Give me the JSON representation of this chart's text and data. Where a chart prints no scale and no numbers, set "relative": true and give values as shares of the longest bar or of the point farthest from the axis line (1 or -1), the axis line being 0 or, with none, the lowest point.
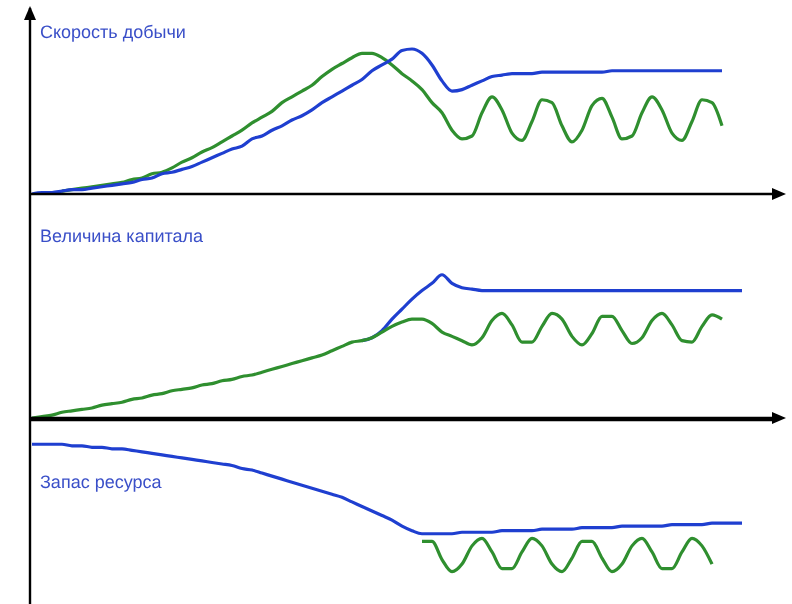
{
  "chart_data": [
    {
      "type": "line",
      "title": "Скорость добычи",
      "relative": true,
      "categories": [
        null,
        null,
        null,
        null,
        null,
        null,
        null,
        null,
        null,
        null,
        null,
        null,
        null,
        null,
        null,
        null,
        null,
        null,
        null,
        null,
        null,
        null,
        null,
        null,
        null,
        null,
        null,
        null,
        null,
        null,
        null,
        null,
        null,
        null,
        null,
        null,
        null,
        null,
        null,
        null,
        null,
        null,
        null,
        null,
        null,
        null,
        null,
        null,
        null,
        null,
        null,
        null,
        null,
        null,
        null,
        null,
        null,
        null,
        null,
        null,
        null,
        null,
        null,
        null,
        null,
        null,
        null,
        null,
        null,
        null,
        null,
        null,
        null
      ],
      "series": [
        {
          "color": "#2f8f2f",
          "values": [
            null,
            null,
            null,
            0.02,
            0.03,
            0.04,
            0.05,
            0.06,
            0.07,
            0.08,
            0.1,
            0.11,
            0.14,
            0.15,
            0.18,
            0.22,
            0.25,
            0.29,
            0.32,
            0.36,
            0.4,
            0.44,
            0.49,
            0.53,
            0.57,
            0.63,
            0.67,
            0.71,
            0.75,
            0.81,
            0.86,
            0.9,
            0.94,
            0.97,
            0.97,
            0.94,
            0.89,
            0.83,
            0.78,
            0.72,
            0.63,
            0.56,
            0.44,
            0.38,
            0.4,
            0.56,
            0.67,
            0.58,
            0.42,
            0.37,
            0.5,
            0.65,
            0.63,
            0.47,
            0.36,
            0.44,
            0.61,
            0.66,
            0.53,
            0.38,
            0.4,
            0.56,
            0.67,
            0.58,
            0.42,
            0.37,
            0.5,
            0.65,
            0.63,
            0.47,
            null,
            null,
            null
          ]
        },
        {
          "color": "#1f3fd0",
          "values": [
            0,
            0.01,
            0.01,
            0.02,
            0.03,
            0.03,
            0.04,
            0.05,
            0.06,
            0.07,
            0.08,
            0.1,
            0.11,
            0.14,
            0.15,
            0.17,
            0.19,
            0.22,
            0.25,
            0.28,
            0.31,
            0.33,
            0.38,
            0.4,
            0.44,
            0.47,
            0.51,
            0.54,
            0.58,
            0.63,
            0.67,
            0.71,
            0.75,
            0.79,
            0.85,
            0.89,
            0.93,
            0.99,
            1,
            0.97,
            0.89,
            0.78,
            0.71,
            0.72,
            0.75,
            0.78,
            0.81,
            0.82,
            0.83,
            0.83,
            0.83,
            0.84,
            0.84,
            0.84,
            0.84,
            0.84,
            0.84,
            0.84,
            0.85,
            0.85,
            0.85,
            0.85,
            0.85,
            0.85,
            0.85,
            0.85,
            0.85,
            0.85,
            0.85,
            0.85,
            null,
            null,
            null
          ]
        }
      ]
    },
    {
      "type": "line",
      "title": "Величина капитала",
      "relative": true,
      "categories": [
        null,
        null,
        null,
        null,
        null,
        null,
        null,
        null,
        null,
        null,
        null,
        null,
        null,
        null,
        null,
        null,
        null,
        null,
        null,
        null,
        null,
        null,
        null,
        null,
        null,
        null,
        null,
        null,
        null,
        null,
        null,
        null,
        null,
        null,
        null,
        null,
        null,
        null,
        null,
        null,
        null,
        null,
        null,
        null,
        null,
        null,
        null,
        null,
        null,
        null,
        null,
        null,
        null,
        null,
        null,
        null,
        null,
        null,
        null,
        null,
        null,
        null,
        null,
        null,
        null,
        null,
        null,
        null,
        null,
        null,
        null,
        null,
        null
      ],
      "series": [
        {
          "color": "#1f3fd0",
          "values": [
            null,
            null,
            null,
            null,
            null,
            null,
            null,
            null,
            null,
            null,
            null,
            null,
            null,
            null,
            null,
            null,
            null,
            null,
            null,
            null,
            null,
            null,
            null,
            null,
            null,
            null,
            null,
            null,
            null,
            null,
            null,
            null,
            null,
            0.54,
            0.56,
            0.61,
            0.69,
            0.76,
            0.83,
            0.89,
            0.94,
            1,
            0.94,
            0.91,
            0.9,
            0.89,
            0.89,
            0.89,
            0.89,
            0.89,
            0.89,
            0.89,
            0.89,
            0.89,
            0.89,
            0.89,
            0.89,
            0.89,
            0.89,
            0.89,
            0.89,
            0.89,
            0.89,
            0.89,
            0.89,
            0.89,
            0.89,
            0.89,
            0.89,
            0.89,
            0.89,
            0.89,
            null
          ]
        },
        {
          "color": "#2f8f2f",
          "values": [
            0,
            0.01,
            0.02,
            0.04,
            0.05,
            0.06,
            0.07,
            0.09,
            0.1,
            0.11,
            0.13,
            0.14,
            0.16,
            0.17,
            0.19,
            0.2,
            0.21,
            0.23,
            0.24,
            0.26,
            0.27,
            0.29,
            0.3,
            0.32,
            0.34,
            0.36,
            0.38,
            0.4,
            0.42,
            0.44,
            0.47,
            0.5,
            0.53,
            0.54,
            0.56,
            0.6,
            0.64,
            0.67,
            0.69,
            0.69,
            0.66,
            0.6,
            0.57,
            0.54,
            0.51,
            0.56,
            0.68,
            0.73,
            0.65,
            0.53,
            0.53,
            0.64,
            0.73,
            0.69,
            0.57,
            0.51,
            0.59,
            0.71,
            0.71,
            0.61,
            0.52,
            0.56,
            0.68,
            0.73,
            0.65,
            0.54,
            0.53,
            0.64,
            0.72,
            0.69,
            null,
            null,
            null
          ]
        }
      ]
    },
    {
      "type": "line",
      "title": "Запас ресурса",
      "relative": true,
      "categories": [
        null,
        null,
        null,
        null,
        null,
        null,
        null,
        null,
        null,
        null,
        null,
        null,
        null,
        null,
        null,
        null,
        null,
        null,
        null,
        null,
        null,
        null,
        null,
        null,
        null,
        null,
        null,
        null,
        null,
        null,
        null,
        null,
        null,
        null,
        null,
        null,
        null,
        null,
        null,
        null,
        null,
        null,
        null,
        null,
        null,
        null,
        null,
        null,
        null,
        null,
        null,
        null,
        null,
        null,
        null,
        null,
        null,
        null,
        null,
        null,
        null,
        null,
        null,
        null,
        null,
        null,
        null,
        null,
        null,
        null,
        null,
        null,
        null
      ],
      "series": [
        {
          "color": "#1f3fd0",
          "values": [
            -0.16,
            -0.16,
            -0.16,
            -0.16,
            -0.17,
            -0.17,
            -0.18,
            -0.18,
            -0.19,
            -0.19,
            -0.2,
            -0.21,
            -0.22,
            -0.23,
            -0.24,
            -0.25,
            -0.26,
            -0.27,
            -0.28,
            -0.29,
            -0.3,
            -0.32,
            -0.33,
            -0.35,
            -0.37,
            -0.39,
            -0.41,
            -0.43,
            -0.45,
            -0.47,
            -0.49,
            -0.51,
            -0.54,
            -0.57,
            -0.6,
            -0.63,
            -0.66,
            -0.7,
            -0.73,
            -0.75,
            -0.75,
            -0.75,
            -0.75,
            -0.74,
            -0.74,
            -0.74,
            -0.74,
            -0.73,
            -0.73,
            -0.73,
            -0.73,
            -0.72,
            -0.72,
            -0.72,
            -0.72,
            -0.71,
            -0.71,
            -0.71,
            -0.71,
            -0.7,
            -0.7,
            -0.7,
            -0.7,
            -0.7,
            -0.69,
            -0.69,
            -0.69,
            -0.69,
            -0.68,
            -0.68,
            -0.68,
            -0.68,
            null
          ]
        },
        {
          "color": "#2f8f2f",
          "values": [
            null,
            null,
            null,
            null,
            null,
            null,
            null,
            null,
            null,
            null,
            null,
            null,
            null,
            null,
            null,
            null,
            null,
            null,
            null,
            null,
            null,
            null,
            null,
            null,
            null,
            null,
            null,
            null,
            null,
            null,
            null,
            null,
            null,
            null,
            null,
            null,
            null,
            null,
            null,
            -0.8,
            -0.8,
            -0.92,
            -1,
            -0.95,
            -0.83,
            -0.78,
            -0.87,
            -0.98,
            -0.98,
            -0.87,
            -0.78,
            -0.83,
            -0.95,
            -1,
            -0.91,
            -0.8,
            -0.8,
            -0.91,
            -1,
            -0.95,
            -0.83,
            -0.78,
            -0.87,
            -0.98,
            -0.98,
            -0.87,
            -0.78,
            -0.83,
            -0.95,
            null,
            null,
            null,
            null
          ]
        }
      ]
    }
  ]
}
